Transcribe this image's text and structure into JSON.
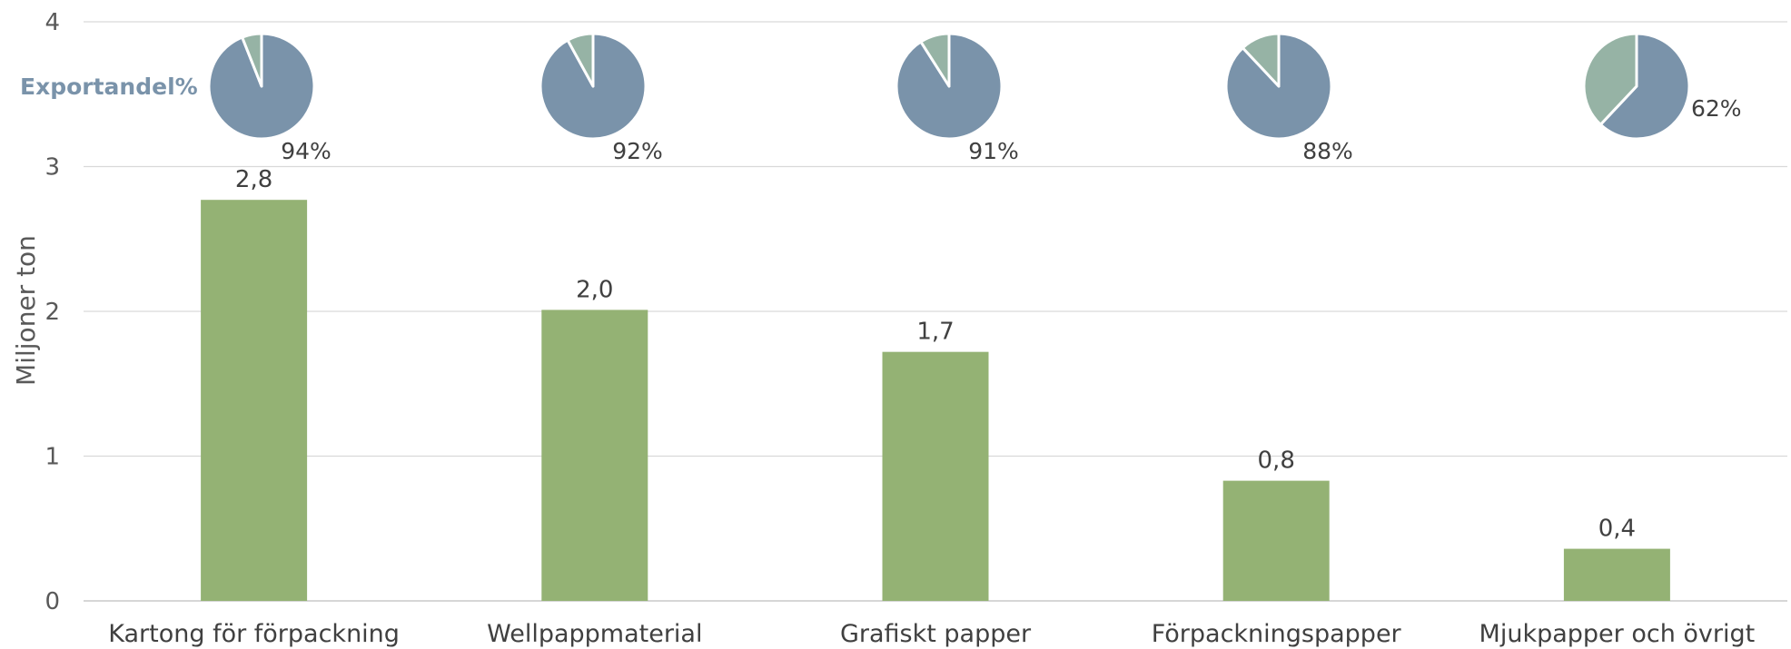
{
  "chart_data": {
    "type": "bar",
    "categories": [
      "Kartong för förpackning",
      "Wellpappmaterial",
      "Grafiskt papper",
      "Förpackningspapper",
      "Mjukpapper och övrigt"
    ],
    "values": [
      2.77,
      2.01,
      1.72,
      0.83,
      0.36
    ],
    "value_labels": [
      "2,8",
      "2,0",
      "1,7",
      "0,8",
      "0,4"
    ],
    "ylabel": "Miljoner ton",
    "ylim": [
      0,
      4
    ],
    "yticks": [
      0,
      1,
      2,
      3,
      4
    ],
    "grid": true,
    "bar_color": "#94b274",
    "export_share": {
      "title": "Exportandel%",
      "type": "pie",
      "values": [
        94,
        92,
        91,
        88,
        62
      ],
      "labels": [
        "94%",
        "92%",
        "91%",
        "88%",
        "62%"
      ],
      "export_color": "#7a93aa",
      "rest_color": "#96b3a5"
    }
  }
}
